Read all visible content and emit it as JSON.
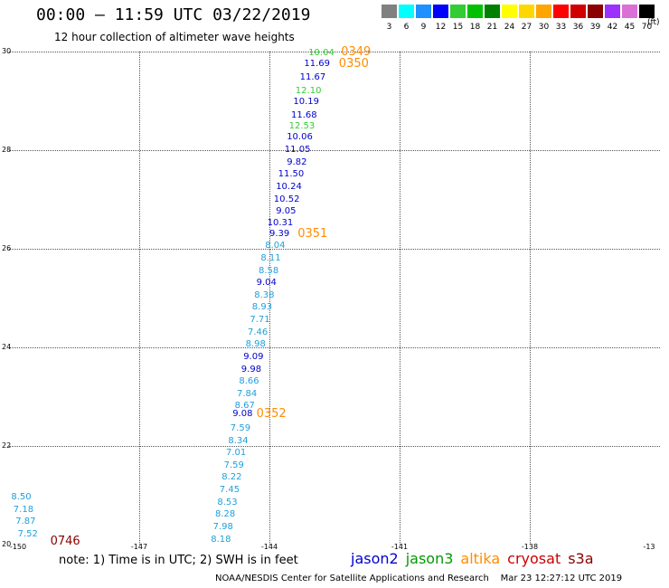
{
  "header": {
    "title": "00:00 – 11:59 UTC 03/22/2019",
    "subtitle": "12 hour collection of altimeter wave heights",
    "units": "(ft)"
  },
  "scale": [
    {
      "label": "3",
      "color": "#808080"
    },
    {
      "label": "6",
      "color": "#00ffff"
    },
    {
      "label": "9",
      "color": "#1e90ff"
    },
    {
      "label": "12",
      "color": "#0000ff"
    },
    {
      "label": "15",
      "color": "#32cd32"
    },
    {
      "label": "18",
      "color": "#00c000"
    },
    {
      "label": "21",
      "color": "#008000"
    },
    {
      "label": "24",
      "color": "#ffff00"
    },
    {
      "label": "27",
      "color": "#ffd700"
    },
    {
      "label": "30",
      "color": "#ffa500"
    },
    {
      "label": "33",
      "color": "#ff0000"
    },
    {
      "label": "36",
      "color": "#d00000"
    },
    {
      "label": "39",
      "color": "#8b0000"
    },
    {
      "label": "42",
      "color": "#9b30ff"
    },
    {
      "label": "45",
      "color": "#da70d6"
    },
    {
      "label": "70",
      "color": "#000000"
    }
  ],
  "axes": {
    "y_labels": [
      "30",
      "28",
      "26",
      "24",
      "22",
      "20"
    ],
    "x_labels": [
      "-150",
      "-147",
      "-144",
      "-141",
      "-138",
      "-13"
    ]
  },
  "times": [
    {
      "text": "0349",
      "color": "#ff8c00",
      "lat": 29.98,
      "lon": -142.35
    },
    {
      "text": "0350",
      "color": "#ff8c00",
      "lat": 29.75,
      "lon": -142.4
    },
    {
      "text": "0351",
      "color": "#ff8c00",
      "lat": 26.3,
      "lon": -143.35
    },
    {
      "text": "0352",
      "color": "#ff8c00",
      "lat": 22.65,
      "lon": -144.3
    },
    {
      "text": "0746",
      "color": "#8b0000",
      "lat": 20.05,
      "lon": -149.05
    }
  ],
  "waves": [
    {
      "text": "10.04",
      "color": "#32cd32",
      "lat": 29.97,
      "lon": -143.1
    },
    {
      "text": "11.69",
      "color": "#0000cd",
      "lat": 29.75,
      "lon": -143.2
    },
    {
      "text": "11.67",
      "color": "#0000cd",
      "lat": 29.47,
      "lon": -143.3
    },
    {
      "text": "12.10",
      "color": "#32cd32",
      "lat": 29.2,
      "lon": -143.4
    },
    {
      "text": "10.19",
      "color": "#0000cd",
      "lat": 28.97,
      "lon": -143.45
    },
    {
      "text": "11.68",
      "color": "#0000cd",
      "lat": 28.7,
      "lon": -143.5
    },
    {
      "text": "12.53",
      "color": "#32cd32",
      "lat": 28.47,
      "lon": -143.55
    },
    {
      "text": "10.06",
      "color": "#0000cd",
      "lat": 28.25,
      "lon": -143.6
    },
    {
      "text": "11.05",
      "color": "#0000cd",
      "lat": 28.0,
      "lon": -143.65
    },
    {
      "text": "9.82",
      "color": "#0000cd",
      "lat": 27.75,
      "lon": -143.6
    },
    {
      "text": "11.50",
      "color": "#0000cd",
      "lat": 27.5,
      "lon": -143.8
    },
    {
      "text": "10.24",
      "color": "#0000cd",
      "lat": 27.25,
      "lon": -143.85
    },
    {
      "text": "10.52",
      "color": "#0000cd",
      "lat": 27.0,
      "lon": -143.9
    },
    {
      "text": "9.05",
      "color": "#0000cd",
      "lat": 26.75,
      "lon": -143.85
    },
    {
      "text": "10.31",
      "color": "#0000cd",
      "lat": 26.52,
      "lon": -144.05
    },
    {
      "text": "9.39",
      "color": "#0000cd",
      "lat": 26.3,
      "lon": -144.0
    },
    {
      "text": "8.04",
      "color": "#1ea0dc",
      "lat": 26.05,
      "lon": -144.1
    },
    {
      "text": "8.11",
      "color": "#1ea0dc",
      "lat": 25.8,
      "lon": -144.2
    },
    {
      "text": "8.58",
      "color": "#1ea0dc",
      "lat": 25.55,
      "lon": -144.25
    },
    {
      "text": "9.04",
      "color": "#0000cd",
      "lat": 25.3,
      "lon": -144.3
    },
    {
      "text": "8.38",
      "color": "#1ea0dc",
      "lat": 25.05,
      "lon": -144.35
    },
    {
      "text": "8.93",
      "color": "#1ea0dc",
      "lat": 24.8,
      "lon": -144.4
    },
    {
      "text": "7.71",
      "color": "#1ea0dc",
      "lat": 24.55,
      "lon": -144.45
    },
    {
      "text": "7.46",
      "color": "#1ea0dc",
      "lat": 24.3,
      "lon": -144.5
    },
    {
      "text": "8.98",
      "color": "#1ea0dc",
      "lat": 24.05,
      "lon": -144.55
    },
    {
      "text": "9.09",
      "color": "#0000cd",
      "lat": 23.8,
      "lon": -144.6
    },
    {
      "text": "9.98",
      "color": "#0000cd",
      "lat": 23.55,
      "lon": -144.65
    },
    {
      "text": "8.66",
      "color": "#1ea0dc",
      "lat": 23.3,
      "lon": -144.7
    },
    {
      "text": "7.84",
      "color": "#1ea0dc",
      "lat": 23.05,
      "lon": -144.75
    },
    {
      "text": "8.67",
      "color": "#1ea0dc",
      "lat": 22.8,
      "lon": -144.8
    },
    {
      "text": "9.08",
      "color": "#0000cd",
      "lat": 22.65,
      "lon": -144.85
    },
    {
      "text": "7.59",
      "color": "#1ea0dc",
      "lat": 22.35,
      "lon": -144.9
    },
    {
      "text": "8.34",
      "color": "#1ea0dc",
      "lat": 22.1,
      "lon": -144.95
    },
    {
      "text": "7.01",
      "color": "#1ea0dc",
      "lat": 21.85,
      "lon": -145.0
    },
    {
      "text": "7.59",
      "color": "#1ea0dc",
      "lat": 21.6,
      "lon": -145.05
    },
    {
      "text": "8.22",
      "color": "#1ea0dc",
      "lat": 21.35,
      "lon": -145.1
    },
    {
      "text": "7.45",
      "color": "#1ea0dc",
      "lat": 21.1,
      "lon": -145.15
    },
    {
      "text": "8.53",
      "color": "#1ea0dc",
      "lat": 20.85,
      "lon": -145.2
    },
    {
      "text": "8.28",
      "color": "#1ea0dc",
      "lat": 20.6,
      "lon": -145.25
    },
    {
      "text": "7.98",
      "color": "#1ea0dc",
      "lat": 20.35,
      "lon": -145.3
    },
    {
      "text": "8.18",
      "color": "#1ea0dc",
      "lat": 20.1,
      "lon": -145.35
    },
    {
      "text": "8.50",
      "color": "#1ea0dc",
      "lat": 20.95,
      "lon": -149.95
    },
    {
      "text": "7.18",
      "color": "#1ea0dc",
      "lat": 20.7,
      "lon": -149.9
    },
    {
      "text": "7.87",
      "color": "#1ea0dc",
      "lat": 20.45,
      "lon": -149.85
    },
    {
      "text": "7.52",
      "color": "#1ea0dc",
      "lat": 20.2,
      "lon": -149.8
    }
  ],
  "note": "note:  1) Time is in UTC;  2) SWH is in feet",
  "legend": [
    {
      "label": "jason2",
      "color": "#0000cd"
    },
    {
      "label": "jason3",
      "color": "#009900"
    },
    {
      "label": "altika",
      "color": "#ff8c00"
    },
    {
      "label": "cryosat",
      "color": "#cc0000"
    },
    {
      "label": "s3a",
      "color": "#8b0000"
    }
  ],
  "footer": "NOAA/NESDIS Center for Satellite Applications and Research    Mar 23 12:27:12 UTC 2019"
}
